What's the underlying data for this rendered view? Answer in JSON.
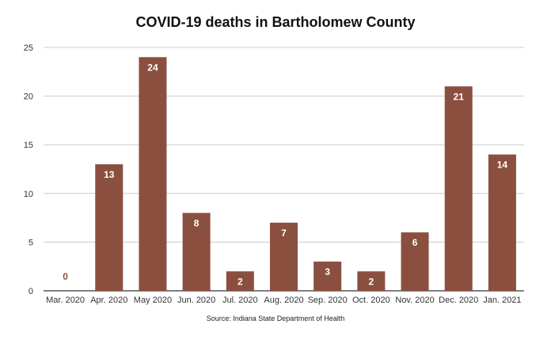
{
  "chart_data": {
    "type": "bar",
    "title": "COVID-19 deaths in Bartholomew County",
    "source": "Source: Indiana State Department of Health",
    "categories": [
      "Mar. 2020",
      "Apr. 2020",
      "May 2020",
      "Jun. 2020",
      "Jul. 2020",
      "Aug. 2020",
      "Sep. 2020",
      "Oct. 2020",
      "Nov. 2020",
      "Dec. 2020",
      "Jan. 2021"
    ],
    "values": [
      0,
      13,
      24,
      8,
      2,
      7,
      3,
      2,
      6,
      21,
      14
    ],
    "value_labels": [
      "0",
      "13",
      "24",
      "8",
      "2",
      "7",
      "3",
      "2",
      "6",
      "21",
      "14"
    ],
    "ylim": [
      0,
      25
    ],
    "yticks": [
      0,
      5,
      10,
      15,
      20,
      25
    ],
    "ytick_labels": [
      "0",
      "5",
      "10",
      "15",
      "20",
      "25"
    ],
    "xlabel": "",
    "ylabel": "",
    "grid": true,
    "legend": "none",
    "bar_color": "#8b4f3f",
    "zero_label_color": "#8b4f3f",
    "label_color": "#ffffff",
    "gridline_color": "#cccccc"
  }
}
